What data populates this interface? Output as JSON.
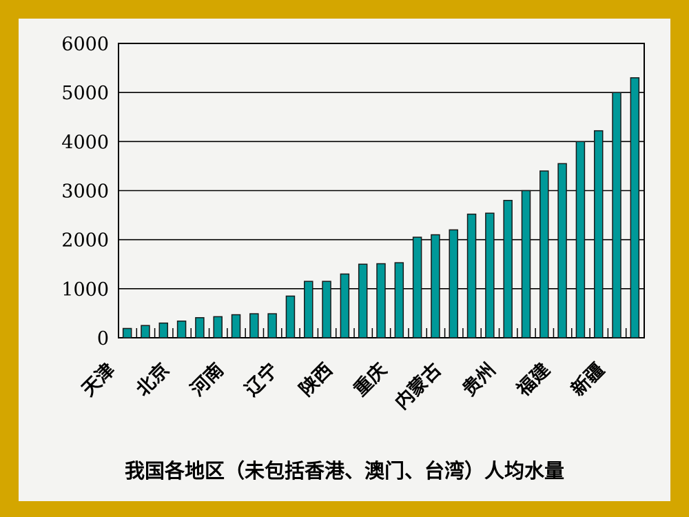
{
  "chart_data": {
    "type": "bar",
    "title": "我国各地区（未包括香港、澳门、台湾）人均水量",
    "xlabel": "",
    "ylabel": "",
    "ylim": [
      0,
      6000
    ],
    "yticks": [
      "0",
      "1000",
      "2000",
      "3000",
      "4000",
      "5000",
      "6000"
    ],
    "grid": true,
    "categories": [
      "天津",
      "",
      "",
      "北京",
      "",
      "",
      "河南",
      "",
      "",
      "辽宁",
      "",
      "",
      "陕西",
      "",
      "",
      "重庆",
      "",
      "",
      "内蒙古",
      "",
      "",
      "贵州",
      "",
      "",
      "福建",
      "",
      "",
      "新疆",
      ""
    ],
    "values": [
      190,
      250,
      300,
      340,
      410,
      430,
      470,
      490,
      490,
      850,
      1150,
      1150,
      1300,
      1500,
      1510,
      1530,
      2050,
      2100,
      2200,
      2520,
      2540,
      2800,
      3000,
      3400,
      3550,
      4000,
      4220,
      5000,
      5300
    ],
    "colors": {
      "bar": "#009999",
      "frame": "#d4a600",
      "background": "#f4f4f2"
    }
  }
}
